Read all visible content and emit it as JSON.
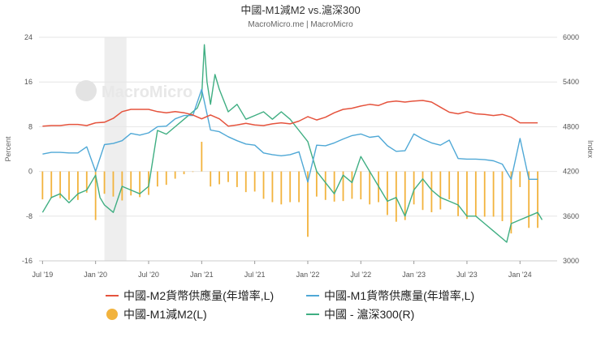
{
  "header": {
    "title": "中國-M1減M2 vs.滬深300",
    "subtitle": "MacroMicro.me | MacroMicro"
  },
  "watermark": {
    "text": "MacroMicro"
  },
  "colors": {
    "m2": "#e5533d",
    "m1": "#4fa8d6",
    "diff": "#f2b33d",
    "csi": "#3fae82",
    "band": "#eeeeee",
    "grid": "#e6e6e6"
  },
  "chart_data": {
    "type": "line",
    "title": "中國-M1減M2 vs.滬深300",
    "xlabel": "",
    "ylabel_left": "Percent",
    "ylabel_right": "Index",
    "ylim_left": [
      -16,
      24
    ],
    "ylim_right": [
      3000,
      6000
    ],
    "left_ticks": [
      "24",
      "16",
      "8",
      "0",
      "-8",
      "-16"
    ],
    "right_ticks": [
      "6000",
      "5400",
      "4800",
      "4200",
      "3600",
      "3000"
    ],
    "x_ticks": [
      {
        "label": "Jul '19",
        "t": 0
      },
      {
        "label": "Jan '20",
        "t": 6
      },
      {
        "label": "Jul '20",
        "t": 12
      },
      {
        "label": "Jan '21",
        "t": 18
      },
      {
        "label": "Jul '21",
        "t": 24
      },
      {
        "label": "Jan '22",
        "t": 30
      },
      {
        "label": "Jul '22",
        "t": 36
      },
      {
        "label": "Jan '23",
        "t": 42
      },
      {
        "label": "Jul '23",
        "t": 48
      },
      {
        "label": "Jan '24",
        "t": 54
      }
    ],
    "shaded_range": [
      7,
      9.5
    ],
    "series": [
      {
        "name": "中國-M2貨幣供應量(年增率,L)",
        "kind": "line",
        "axis": "left",
        "t": [
          0,
          1,
          2,
          3,
          4,
          5,
          6,
          7,
          8,
          9,
          10,
          11,
          12,
          13,
          14,
          15,
          16,
          17,
          18,
          19,
          20,
          21,
          22,
          23,
          24,
          25,
          26,
          27,
          28,
          29,
          30,
          31,
          32,
          33,
          34,
          35,
          36,
          37,
          38,
          39,
          40,
          41,
          42,
          43,
          44,
          45,
          46,
          47,
          48,
          49,
          50,
          51,
          52,
          53,
          54,
          55,
          56
        ],
        "values": [
          8.1,
          8.2,
          8.2,
          8.4,
          8.4,
          8.2,
          8.7,
          8.8,
          9.5,
          10.7,
          11.1,
          11.1,
          11.1,
          10.7,
          10.5,
          10.7,
          10.5,
          10.1,
          9.4,
          10.1,
          9.4,
          8.1,
          8.3,
          8.6,
          8.3,
          8.2,
          8.5,
          8.7,
          8.5,
          9.0,
          9.8,
          9.2,
          9.7,
          10.5,
          11.1,
          11.3,
          11.7,
          12.0,
          11.8,
          12.4,
          12.6,
          12.4,
          12.6,
          12.7,
          12.4,
          11.5,
          10.6,
          10.3,
          10.7,
          10.3,
          10.2,
          10.0,
          10.2,
          9.7,
          8.7,
          8.7,
          8.7
        ]
      },
      {
        "name": "中國-M1貨幣供應量(年增率,L)",
        "kind": "line",
        "axis": "left",
        "t": [
          0,
          1,
          2,
          3,
          4,
          5,
          6,
          7,
          8,
          9,
          10,
          11,
          12,
          13,
          14,
          15,
          16,
          17,
          18,
          19,
          20,
          21,
          22,
          23,
          24,
          25,
          26,
          27,
          28,
          29,
          30,
          31,
          32,
          33,
          34,
          35,
          36,
          37,
          38,
          39,
          40,
          41,
          42,
          43,
          44,
          45,
          46,
          47,
          48,
          49,
          50,
          51,
          52,
          53,
          54,
          55,
          56
        ],
        "values": [
          3.1,
          3.4,
          3.4,
          3.3,
          3.3,
          4.4,
          0,
          4.8,
          5.0,
          5.5,
          6.8,
          6.5,
          6.9,
          8.0,
          8.1,
          9.4,
          10.0,
          10.0,
          14.7,
          7.4,
          7.1,
          6.2,
          5.5,
          4.9,
          4.7,
          3.3,
          3.0,
          2.8,
          3.0,
          3.5,
          -1.9,
          4.7,
          4.6,
          5.1,
          5.8,
          6.4,
          6.7,
          6.1,
          6.3,
          4.6,
          3.6,
          3.7,
          6.7,
          5.8,
          5.1,
          4.7,
          5.6,
          2.3,
          2.2,
          2.2,
          2.1,
          1.9,
          1.3,
          -1.4,
          5.9,
          -1.4,
          -1.4
        ]
      },
      {
        "name": "中國-M1減M2(L)",
        "kind": "bar",
        "axis": "left",
        "t": [
          0,
          1,
          2,
          3,
          4,
          5,
          6,
          7,
          8,
          9,
          10,
          11,
          12,
          13,
          14,
          15,
          16,
          17,
          18,
          19,
          20,
          21,
          22,
          23,
          24,
          25,
          26,
          27,
          28,
          29,
          30,
          31,
          32,
          33,
          34,
          35,
          36,
          37,
          38,
          39,
          40,
          41,
          42,
          43,
          44,
          45,
          46,
          47,
          48,
          49,
          50,
          51,
          52,
          53,
          54,
          55,
          56
        ],
        "values": [
          -5.0,
          -4.8,
          -4.8,
          -5.1,
          -5.1,
          -3.8,
          -8.7,
          -4.0,
          -4.5,
          -5.2,
          -4.3,
          -4.6,
          -4.2,
          -2.7,
          -2.4,
          -1.3,
          -0.5,
          -0.1,
          5.3,
          -2.7,
          -2.3,
          -1.9,
          -2.8,
          -3.7,
          -3.6,
          -4.9,
          -5.5,
          -5.9,
          -5.5,
          -5.5,
          -11.7,
          -4.5,
          -5.1,
          -5.4,
          -5.3,
          -4.9,
          -5.0,
          -5.9,
          -5.5,
          -7.8,
          -9.0,
          -8.7,
          -5.9,
          -6.9,
          -7.3,
          -6.8,
          -5.0,
          -8.0,
          -8.5,
          -8.1,
          -8.1,
          -8.1,
          -8.9,
          -11.1,
          -2.8,
          -10.1,
          -10.1
        ]
      },
      {
        "name": "中國 - 滬深300(R)",
        "kind": "line",
        "axis": "right",
        "t": [
          0,
          1,
          2,
          3,
          4,
          5,
          6,
          6.5,
          7,
          8,
          9,
          10,
          11,
          12,
          13,
          14,
          15,
          16,
          17,
          17.5,
          18,
          18.3,
          18.6,
          19,
          19.5,
          20,
          21,
          22,
          23,
          24,
          25,
          26,
          27,
          28,
          29,
          30,
          31,
          32,
          33,
          34,
          35,
          36,
          37,
          38,
          39,
          40,
          41,
          42,
          43,
          44,
          45,
          46,
          47,
          48,
          49,
          50,
          51,
          52,
          52.5,
          53,
          54,
          55,
          56,
          56.5
        ],
        "values": [
          3650,
          3850,
          3900,
          3780,
          3900,
          3950,
          4150,
          3850,
          3750,
          3650,
          4000,
          3950,
          3900,
          4000,
          4750,
          4700,
          4800,
          4900,
          5000,
          5050,
          5200,
          5900,
          5400,
          5100,
          5500,
          5300,
          5000,
          5100,
          4900,
          4950,
          5000,
          4900,
          5000,
          4900,
          4750,
          4600,
          4200,
          4050,
          3900,
          4150,
          4050,
          4400,
          4200,
          4000,
          3800,
          3850,
          3600,
          3950,
          4100,
          3950,
          3850,
          3800,
          3750,
          3600,
          3600,
          3500,
          3400,
          3300,
          3250,
          3500,
          3550,
          3600,
          3650,
          3550
        ]
      }
    ]
  },
  "legend": [
    {
      "label": "中國-M2貨幣供應量(年增率,L)",
      "swatch": "line"
    },
    {
      "label": "中國-M1貨幣供應量(年增率,L)",
      "swatch": "line"
    },
    {
      "label": "中國-M1減M2(L)",
      "swatch": "dot"
    },
    {
      "label": "中國 - 滬深300(R)",
      "swatch": "line"
    }
  ]
}
